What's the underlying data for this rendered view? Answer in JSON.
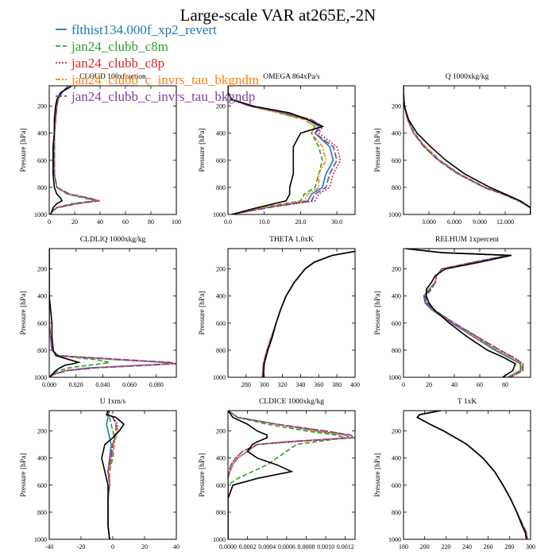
{
  "figure": {
    "title": "Large-scale VAR at265E,-2N",
    "y_label": "Pressure [hPa]"
  },
  "legend": [
    {
      "name": "flthist134.000f_xp2_revert",
      "color": "#1f77b4",
      "dash": ""
    },
    {
      "name": "jan24_clubb_c8m",
      "color": "#2ca02c",
      "dash": "6,3"
    },
    {
      "name": "jan24_clubb_c8p",
      "color": "#d62728",
      "dash": "2,2"
    },
    {
      "name": "jan24_clubb_c_invrs_tau_bkgndm",
      "color": "#ff7f0e",
      "dash": "6,2,2,2"
    },
    {
      "name": "jan24_clubb_c_invrs_tau_bkgndp",
      "color": "#7b3f9e",
      "dash": "8,3"
    }
  ],
  "chart_data": [
    {
      "type": "line",
      "title": "CLOUD  100xfraction",
      "xlim": [
        0,
        100
      ],
      "xticks": [
        0,
        20,
        40,
        60,
        80,
        100
      ],
      "xtick_labels": [
        "0",
        "20",
        "40",
        "60",
        "80",
        "100"
      ],
      "ylim": [
        1000,
        50
      ],
      "yticks": [
        200,
        400,
        600,
        800,
        1000
      ],
      "p": [
        50,
        100,
        150,
        200,
        300,
        400,
        500,
        600,
        700,
        800,
        850,
        880,
        900,
        920,
        950,
        980,
        1000
      ],
      "control": [
        18,
        9,
        6,
        5,
        4,
        4,
        3,
        3,
        3,
        4,
        6,
        9,
        10,
        6,
        3,
        2,
        1
      ],
      "exp": [
        [
          15,
          10,
          7,
          6,
          5,
          4,
          4,
          4,
          4,
          6,
          15,
          30,
          37,
          20,
          6,
          2,
          1
        ],
        [
          15,
          10,
          7,
          6,
          5,
          4,
          4,
          4,
          4,
          6,
          14,
          28,
          35,
          18,
          5,
          2,
          1
        ],
        [
          15,
          10,
          7,
          6,
          5,
          4,
          4,
          4,
          4,
          6,
          16,
          32,
          40,
          22,
          6,
          2,
          1
        ],
        [
          15,
          10,
          7,
          6,
          5,
          4,
          4,
          4,
          4,
          6,
          15,
          31,
          38,
          21,
          6,
          2,
          1
        ],
        [
          15,
          10,
          7,
          6,
          5,
          4,
          4,
          4,
          4,
          6,
          16,
          32,
          39,
          22,
          6,
          2,
          1
        ]
      ]
    },
    {
      "type": "line",
      "title": "OMEGA  864xPa/s",
      "xlim": [
        0,
        35
      ],
      "xticks": [
        0,
        10,
        20,
        30
      ],
      "xtick_labels": [
        "0.0",
        "10.0",
        "20.0",
        "30.0"
      ],
      "ylim": [
        1000,
        50
      ],
      "yticks": [
        200,
        400,
        600,
        800,
        1000
      ],
      "p": [
        50,
        100,
        150,
        200,
        250,
        300,
        350,
        400,
        500,
        600,
        700,
        800,
        850,
        900,
        950,
        1000
      ],
      "control": [
        0,
        0,
        1,
        7,
        17,
        22,
        26,
        20,
        18,
        18,
        18,
        17,
        17,
        16,
        8,
        1
      ],
      "exp": [
        [
          0,
          0,
          1,
          6,
          15,
          22,
          25,
          24,
          28,
          29,
          27,
          26,
          23,
          22,
          10,
          1
        ],
        [
          0,
          0,
          1,
          6,
          14,
          21,
          24,
          23,
          25,
          26,
          25,
          24,
          21,
          20,
          9,
          1
        ],
        [
          0,
          0,
          1,
          6,
          16,
          23,
          26,
          25,
          30,
          31,
          29,
          28,
          25,
          24,
          11,
          1
        ],
        [
          0,
          0,
          1,
          6,
          14,
          21,
          24,
          23,
          26,
          27,
          25,
          25,
          22,
          21,
          10,
          1
        ],
        [
          0,
          0,
          1,
          6,
          16,
          23,
          26,
          24,
          29,
          30,
          28,
          27,
          24,
          23,
          11,
          1
        ]
      ]
    },
    {
      "type": "line",
      "title": "Q  1000xkg/kg",
      "xlim": [
        0,
        15
      ],
      "xticks": [
        3,
        6,
        9,
        12
      ],
      "xtick_labels": [
        "3.000",
        "6.000",
        "9.000",
        "12.000"
      ],
      "ylim": [
        1000,
        50
      ],
      "yticks": [
        200,
        400,
        600,
        800,
        1000
      ],
      "p": [
        50,
        100,
        200,
        300,
        400,
        500,
        600,
        700,
        800,
        850,
        900,
        950,
        1000
      ],
      "control": [
        0,
        0,
        0.1,
        0.6,
        1.6,
        3.2,
        5.0,
        7.2,
        10.2,
        12.0,
        13.8,
        15.0,
        15.0
      ],
      "exp": [
        [
          0,
          0,
          0.1,
          0.5,
          1.2,
          2.5,
          4.2,
          6.5,
          9.6,
          11.8,
          13.6,
          15.0,
          15.0
        ],
        [
          0,
          0,
          0.1,
          0.5,
          1.3,
          2.6,
          4.3,
          6.6,
          9.7,
          11.8,
          13.6,
          15.0,
          15.0
        ],
        [
          0,
          0,
          0.1,
          0.5,
          1.2,
          2.4,
          4.1,
          6.4,
          9.5,
          11.7,
          13.6,
          15.0,
          15.0
        ],
        [
          0,
          0,
          0.1,
          0.5,
          1.2,
          2.5,
          4.2,
          6.5,
          9.6,
          11.8,
          13.6,
          15.0,
          15.0
        ],
        [
          0,
          0,
          0.1,
          0.5,
          1.2,
          2.4,
          4.1,
          6.4,
          9.5,
          11.7,
          13.6,
          15.0,
          15.0
        ]
      ]
    },
    {
      "type": "line",
      "title": "CLDLIQ  1000xkg/kg",
      "xlim": [
        0,
        0.095
      ],
      "xticks": [
        0,
        0.02,
        0.04,
        0.06,
        0.08
      ],
      "xtick_labels": [
        "0.000",
        "0.020",
        "0.040",
        "0.060",
        "0.080"
      ],
      "ylim": [
        1000,
        50
      ],
      "yticks": [
        200,
        400,
        600,
        800,
        1000
      ],
      "p": [
        50,
        400,
        500,
        600,
        700,
        800,
        840,
        870,
        890,
        900,
        910,
        930,
        950,
        980,
        1000
      ],
      "control": [
        0,
        0,
        0.001,
        0.002,
        0.002,
        0.003,
        0.005,
        0.015,
        0.022,
        0.018,
        0.012,
        0.008,
        0.005,
        0.002,
        0
      ],
      "exp": [
        [
          0,
          0,
          0,
          0,
          0.001,
          0.002,
          0.006,
          0.05,
          0.085,
          0.092,
          0.07,
          0.03,
          0.012,
          0.003,
          0
        ],
        [
          0,
          0,
          0,
          0,
          0.001,
          0.002,
          0.005,
          0.035,
          0.045,
          0.04,
          0.03,
          0.015,
          0.007,
          0.002,
          0
        ],
        [
          0,
          0,
          0,
          0,
          0.001,
          0.002,
          0.007,
          0.055,
          0.09,
          0.095,
          0.075,
          0.035,
          0.014,
          0.003,
          0
        ],
        [
          0,
          0,
          0,
          0,
          0.001,
          0.002,
          0.006,
          0.052,
          0.088,
          0.094,
          0.072,
          0.032,
          0.013,
          0.003,
          0
        ],
        [
          0,
          0,
          0,
          0,
          0.001,
          0.002,
          0.007,
          0.056,
          0.09,
          0.095,
          0.075,
          0.035,
          0.014,
          0.003,
          0
        ]
      ]
    },
    {
      "type": "line",
      "title": "THETA  1.0xK",
      "xlim": [
        260,
        400
      ],
      "xticks": [
        280,
        300,
        320,
        340,
        360,
        380,
        400
      ],
      "xtick_labels": [
        "280",
        "300",
        "320",
        "340",
        "360",
        "380",
        "400"
      ],
      "ylim": [
        1000,
        50
      ],
      "yticks": [
        200,
        400,
        600,
        800,
        1000
      ],
      "p": [
        70,
        100,
        150,
        200,
        300,
        400,
        500,
        600,
        700,
        800,
        900,
        1000
      ],
      "control": [
        400,
        375,
        355,
        345,
        333,
        324,
        318,
        313,
        309,
        304,
        300,
        299
      ],
      "exp": [
        [
          400,
          375,
          355,
          345,
          333,
          324,
          318,
          313,
          308,
          303,
          299,
          298
        ],
        [
          400,
          375,
          355,
          345,
          333,
          324,
          318,
          313,
          308,
          303,
          299,
          298
        ],
        [
          400,
          375,
          355,
          345,
          333,
          324,
          318,
          313,
          308,
          303,
          299,
          298
        ],
        [
          400,
          375,
          355,
          345,
          333,
          324,
          318,
          313,
          308,
          303,
          299,
          298
        ],
        [
          400,
          375,
          355,
          345,
          333,
          324,
          318,
          313,
          308,
          303,
          299,
          298
        ]
      ]
    },
    {
      "type": "line",
      "title": "RELHUM  1xpercent",
      "xlim": [
        0,
        100
      ],
      "xticks": [
        0,
        20,
        40,
        60,
        80
      ],
      "xtick_labels": [
        "0",
        "20",
        "40",
        "60",
        "80"
      ],
      "ylim": [
        1000,
        50
      ],
      "yticks": [
        200,
        400,
        600,
        800,
        1000
      ],
      "p": [
        50,
        80,
        100,
        150,
        200,
        250,
        300,
        350,
        400,
        450,
        500,
        600,
        700,
        800,
        850,
        900,
        950,
        1000
      ],
      "control": [
        2,
        30,
        85,
        60,
        33,
        25,
        22,
        18,
        18,
        20,
        24,
        36,
        50,
        66,
        78,
        88,
        86,
        78
      ],
      "exp": [
        [
          2,
          30,
          82,
          55,
          30,
          26,
          25,
          20,
          16,
          17,
          22,
          38,
          55,
          72,
          82,
          92,
          92,
          82
        ],
        [
          2,
          30,
          82,
          56,
          30,
          26,
          25,
          22,
          18,
          19,
          24,
          40,
          57,
          73,
          83,
          92,
          92,
          82
        ],
        [
          2,
          30,
          82,
          55,
          30,
          26,
          25,
          20,
          16,
          18,
          23,
          40,
          58,
          76,
          86,
          94,
          94,
          84
        ],
        [
          2,
          30,
          82,
          55,
          30,
          26,
          25,
          20,
          17,
          18,
          23,
          39,
          56,
          74,
          84,
          93,
          93,
          83
        ],
        [
          2,
          30,
          82,
          55,
          30,
          26,
          25,
          21,
          17,
          18,
          23,
          40,
          58,
          76,
          86,
          94,
          94,
          84
        ]
      ]
    },
    {
      "type": "line",
      "title": "U  1xm/s",
      "xlim": [
        -40,
        40
      ],
      "xticks": [
        -40,
        -20,
        0,
        20,
        40
      ],
      "xtick_labels": [
        "-40",
        "-20",
        "0",
        "20",
        "40"
      ],
      "ylim": [
        1000,
        50
      ],
      "yticks": [
        200,
        400,
        600,
        800,
        1000
      ],
      "p": [
        50,
        80,
        100,
        150,
        200,
        250,
        300,
        400,
        500,
        600,
        700,
        800,
        900,
        1000
      ],
      "control": [
        -3,
        -4,
        2,
        7,
        4,
        0,
        -5,
        -7,
        -5,
        -3,
        -3,
        -3,
        -3,
        -2
      ],
      "exp": [
        [
          -2,
          -3,
          -3,
          -4,
          -3,
          -2,
          -1,
          -2,
          -3,
          -2,
          -3,
          -3,
          -3,
          -2
        ],
        [
          -2,
          -3,
          -2,
          -1,
          0,
          1,
          1,
          0,
          -2,
          -2,
          -3,
          -3,
          -3,
          -2
        ],
        [
          -2,
          -3,
          0,
          3,
          3,
          1,
          0,
          -2,
          -3,
          -2,
          -3,
          -3,
          -3,
          -2
        ],
        [
          -2,
          -3,
          0,
          2,
          3,
          2,
          1,
          -1,
          -2,
          -2,
          -3,
          -3,
          -3,
          -2
        ],
        [
          -2,
          -3,
          0,
          2,
          2,
          1,
          0,
          -1,
          -3,
          -2,
          -3,
          -3,
          -3,
          -2
        ]
      ]
    },
    {
      "type": "line",
      "title": "CLDICE  1000xkg/kg",
      "xlim": [
        0,
        0.0013
      ],
      "xticks": [
        0,
        0.0002,
        0.0004,
        0.0006,
        0.0008,
        0.001,
        0.0012
      ],
      "xtick_labels": [
        "0.0000",
        "0.0002",
        "0.0004",
        "0.0006",
        "0.0008",
        "0.0010",
        "0.0012"
      ],
      "ylim": [
        1000,
        50
      ],
      "yticks": [
        200,
        400,
        600,
        800,
        1000
      ],
      "p": [
        50,
        100,
        150,
        200,
        230,
        250,
        280,
        300,
        350,
        400,
        450,
        500,
        550,
        600,
        700,
        1000
      ],
      "control": [
        0,
        5e-05,
        0.0002,
        0.0003,
        0.0004,
        0.0004,
        0.0003,
        0.00025,
        0.0002,
        0.0003,
        0.0005,
        0.00065,
        0.0003,
        5e-05,
        0,
        0
      ],
      "exp": [
        [
          0,
          0.0001,
          0.0005,
          0.0009,
          0.0012,
          0.00125,
          0.0006,
          0.0003,
          0.0002,
          0.0001,
          5e-05,
          2e-05,
          0,
          0,
          0,
          0
        ],
        [
          0,
          0.0001,
          0.0004,
          0.0008,
          0.0011,
          0.0012,
          0.0009,
          0.0007,
          0.0006,
          0.0005,
          0.0004,
          0.00025,
          0.0001,
          0,
          0,
          0
        ],
        [
          0,
          0.0001,
          0.0005,
          0.001,
          0.00125,
          0.0013,
          0.0007,
          0.0003,
          0.00015,
          8e-05,
          3e-05,
          1e-05,
          0,
          0,
          0,
          0
        ],
        [
          0,
          0.0001,
          0.0005,
          0.0009,
          0.0012,
          0.00125,
          0.0006,
          0.0003,
          0.0002,
          0.0001,
          5e-05,
          2e-05,
          0,
          0,
          0,
          0
        ],
        [
          0,
          0.0001,
          0.0005,
          0.001,
          0.00125,
          0.0013,
          0.0006,
          0.0003,
          0.00015,
          8e-05,
          3e-05,
          1e-05,
          0,
          0,
          0,
          0
        ]
      ]
    },
    {
      "type": "line",
      "title": "T  1xK",
      "xlim": [
        180,
        300
      ],
      "xticks": [
        180,
        200,
        220,
        240,
        260,
        280,
        300
      ],
      "xtick_labels": [
        "180",
        "200",
        "220",
        "240",
        "260",
        "280",
        "300"
      ],
      "ylim": [
        1000,
        50
      ],
      "yticks": [
        200,
        400,
        600,
        800,
        1000
      ],
      "p": [
        50,
        80,
        100,
        150,
        200,
        300,
        400,
        500,
        600,
        700,
        800,
        900,
        950,
        1000
      ],
      "control": [
        215,
        195,
        193,
        205,
        218,
        240,
        255,
        266,
        274,
        281,
        287,
        292,
        295,
        296
      ],
      "exp": [
        [
          215,
          195,
          193,
          205,
          218,
          240,
          255,
          266,
          274,
          281,
          287,
          293,
          296,
          297
        ],
        [
          215,
          195,
          193,
          205,
          218,
          240,
          255,
          266,
          274,
          281,
          287,
          293,
          296,
          297
        ],
        [
          215,
          195,
          193,
          205,
          218,
          240,
          255,
          266,
          274,
          281,
          287,
          293,
          296,
          297
        ],
        [
          215,
          195,
          193,
          205,
          218,
          240,
          255,
          266,
          274,
          281,
          287,
          293,
          296,
          297
        ],
        [
          215,
          195,
          193,
          205,
          218,
          240,
          255,
          266,
          274,
          281,
          287,
          293,
          296,
          297
        ]
      ]
    }
  ]
}
